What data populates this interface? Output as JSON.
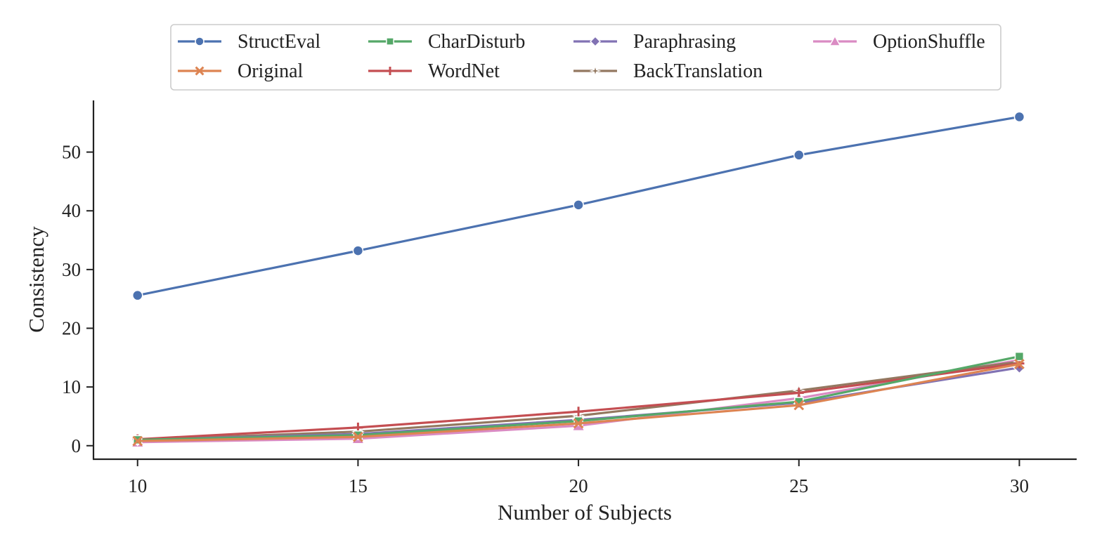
{
  "chart_data": {
    "type": "line",
    "xlabel": "Number of Subjects",
    "ylabel": "Consistency",
    "x": [
      10,
      15,
      20,
      25,
      30
    ],
    "xticks": [
      "10",
      "15",
      "20",
      "25",
      "30"
    ],
    "yticks": [
      "0",
      "10",
      "20",
      "30",
      "40",
      "50"
    ],
    "xlim": [
      9,
      31.3
    ],
    "ylim": [
      -2.3,
      58.8
    ],
    "grid": false,
    "legend_position": "top",
    "series": [
      {
        "name": "StructEval",
        "color": "#4c72b0",
        "marker": "circle",
        "values": [
          25.6,
          33.2,
          41.0,
          49.5,
          56.0
        ]
      },
      {
        "name": "Original",
        "color": "#dd8452",
        "marker": "x",
        "values": [
          0.8,
          1.5,
          3.8,
          6.9,
          13.9
        ]
      },
      {
        "name": "CharDisturb",
        "color": "#55a868",
        "marker": "square",
        "values": [
          1.0,
          1.8,
          4.2,
          7.5,
          15.2
        ]
      },
      {
        "name": "WordNet",
        "color": "#c44e52",
        "marker": "plus",
        "values": [
          1.1,
          3.1,
          5.8,
          9.0,
          14.0
        ]
      },
      {
        "name": "Paraphrasing",
        "color": "#8172b3",
        "marker": "diamond",
        "values": [
          1.0,
          2.0,
          4.4,
          7.3,
          13.3
        ]
      },
      {
        "name": "BackTranslation",
        "color": "#937860",
        "marker": "star",
        "values": [
          1.0,
          2.4,
          5.1,
          9.4,
          14.3
        ]
      },
      {
        "name": "OptionShuffle",
        "color": "#da8bc3",
        "marker": "triangle",
        "values": [
          0.6,
          1.2,
          3.4,
          8.1,
          14.6
        ]
      }
    ]
  }
}
